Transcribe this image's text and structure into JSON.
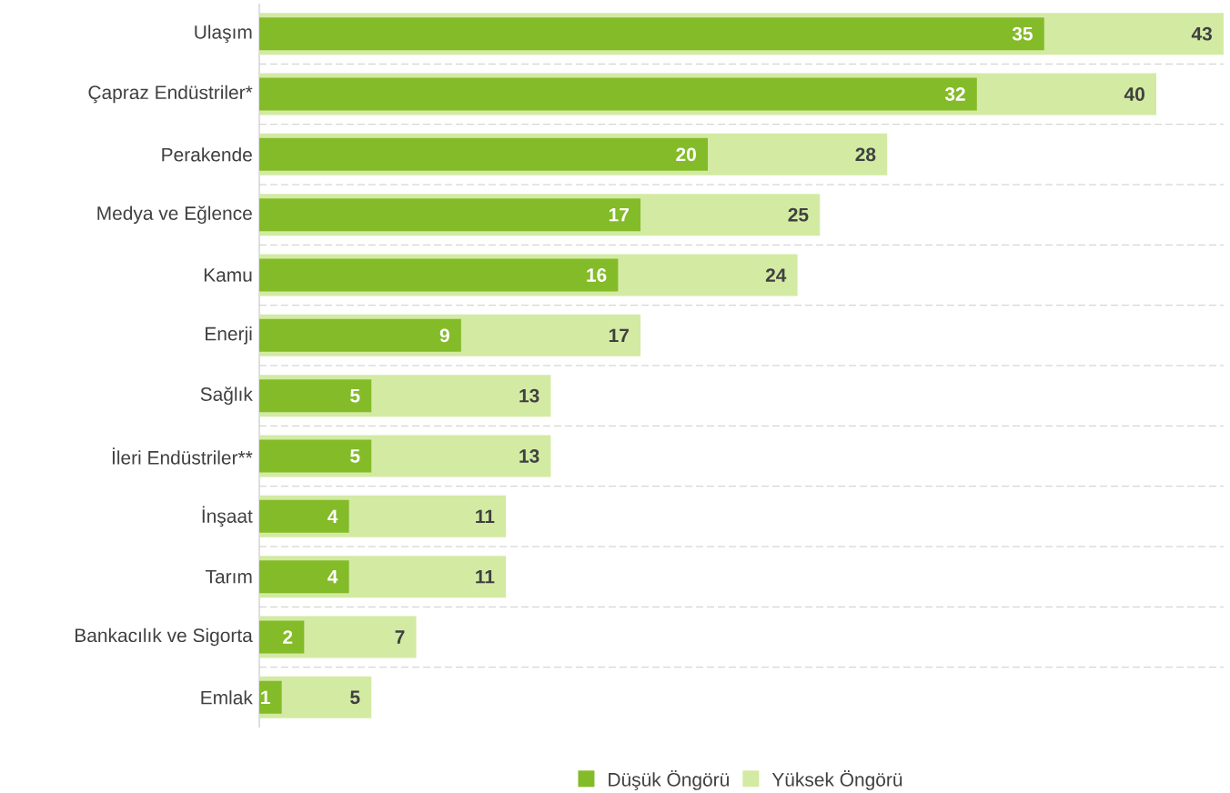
{
  "chart_data": {
    "type": "bar",
    "orientation": "horizontal",
    "categories": [
      "Ulaşım",
      "Çapraz Endüstriler*",
      "Perakende",
      "Medya ve Eğlence",
      "Kamu",
      "Enerji",
      "Sağlık",
      "İleri Endüstriler**",
      "İnşaat",
      "Tarım",
      "Bankacılık ve Sigorta",
      "Emlak"
    ],
    "series": [
      {
        "name": "Düşük Öngörü",
        "color": "#84bb29",
        "values": [
          35,
          32,
          20,
          17,
          16,
          9,
          5,
          5,
          4,
          4,
          2,
          1
        ]
      },
      {
        "name": "Yüksek Öngörü",
        "color": "#d3eaa3",
        "values": [
          43,
          40,
          28,
          25,
          24,
          17,
          13,
          13,
          11,
          11,
          7,
          5
        ]
      }
    ],
    "xlim": [
      0,
      43
    ],
    "data_labels": true,
    "grid": "y",
    "legend": "bottom",
    "tick_labels": "y"
  }
}
